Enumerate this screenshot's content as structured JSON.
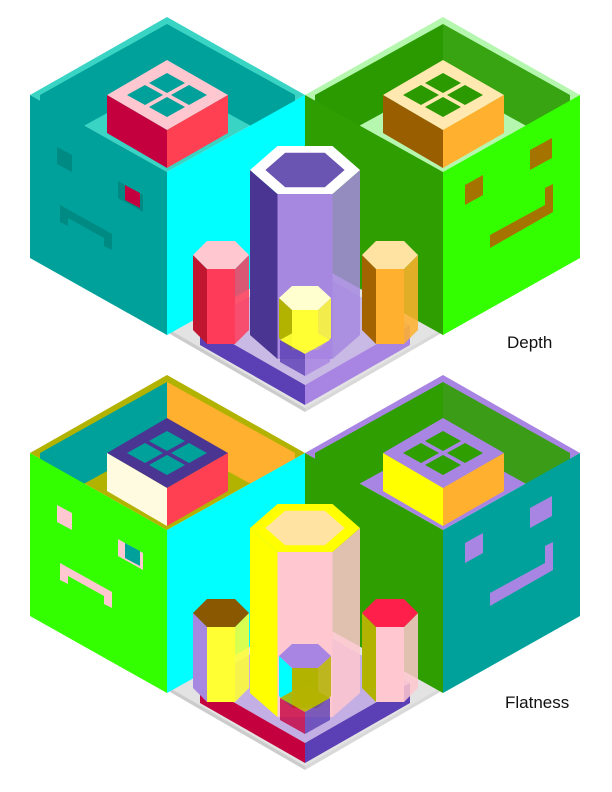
{
  "panels": [
    {
      "label": "Depth",
      "palette": {
        "leftOuter": "#00a19a",
        "leftTop": "#3ad4c5",
        "leftIn": "#00a19a",
        "leftInFront": "#00a19a",
        "leftFaceLeft": "#00a19a",
        "leftFaceRight": "#00ffff",
        "rightOuter": "#2fa300",
        "rightTop": "#b6f7b0",
        "rightIn": "#2a9a00",
        "rightFaceLeft": "#2e9e00",
        "rightFaceRight": "#33ff00",
        "plinthTop": "#e3e3e3",
        "plinthL": "#cccccc",
        "plinthR": "#d9d9d9",
        "platL": "#5b3fb4",
        "platR": "#a985e3",
        "platTop": "#b497e8",
        "bigL": "#4b3592",
        "bigR": "#a688e0",
        "bigTop": "#ffffff",
        "bigHole": "#6b55b2",
        "leftTube": "#c01630",
        "leftTubeR": "#ff3b5a",
        "leftTubeTop": "#ffc8d0",
        "rightTube": "#a36300",
        "rightTubeR": "#ffb02e",
        "rightTubeTop": "#ffe3a3",
        "midTube": "#b2b300",
        "midTubeR": "#ffff33",
        "midTubeTop": "#ffffd0",
        "windowL": "#c4003f",
        "windowR": "#ff3f52",
        "windowTop": "#ffc7cf",
        "windowR2L": "#995e00",
        "windowR2R": "#ffb02e",
        "windowR2Top": "#ffe9b0",
        "faceFeature": "#008a84",
        "faceFeatureR": "#a57300",
        "eyeAccent": "#c4003f"
      }
    },
    {
      "label": "Flatness",
      "palette": {
        "leftOuter": "#33ff00",
        "leftTop": "#b2b300",
        "leftIn": "#00a19a",
        "leftInFront": "#ffb02e",
        "leftFaceLeft": "#33ff00",
        "leftFaceRight": "#00ffff",
        "rightOuter": "#2e9e00",
        "rightTop": "#a985e3",
        "rightIn": "#2e9e00",
        "rightFaceLeft": "#2e9e00",
        "rightFaceRight": "#00a19a",
        "plinthTop": "#e3e3e3",
        "plinthL": "#cccccc",
        "plinthR": "#d9d9d9",
        "platL": "#c4003f",
        "platR": "#5b3fb4",
        "platTop": "#a985e3",
        "bigL": "#ffff00",
        "bigR": "#ffc7cf",
        "bigTop": "#ffff00",
        "bigHole": "#ffe3a3",
        "leftTube": "#a688e0",
        "leftTubeR": "#ffff33",
        "leftTubeTop": "#8a5800",
        "rightTube": "#b2b300",
        "rightTubeR": "#ffc7cf",
        "rightTubeTop": "#ff1f4b",
        "midTube": "#00ffff",
        "midTubeR": "#b2b300",
        "midTubeTop": "#a985e3",
        "windowL": "#fffbe0",
        "windowR": "#ff3f52",
        "windowTop": "#4b3592",
        "windowR2L": "#ffff00",
        "windowR2R": "#ffb02e",
        "windowR2Top": "#a985e3",
        "faceFeature": "#ffc7cf",
        "faceFeatureR": "#a985e3",
        "eyeAccent": "#00a19a"
      }
    }
  ]
}
